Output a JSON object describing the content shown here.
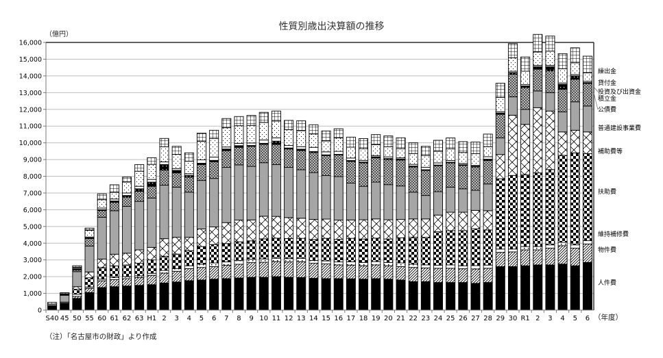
{
  "title": "性質別歳出決算額の推移",
  "y_unit": "（億円）",
  "x_unit": "（年度）",
  "note": "（注）「名古屋市の財政」より作成",
  "chart_data": {
    "type": "bar",
    "stacked": true,
    "title": "性質別歳出決算額の推移",
    "xlabel": "（年度）",
    "ylabel": "（億円）",
    "ylim": [
      0,
      16000
    ],
    "yticks": [
      "0",
      "1,000",
      "2,000",
      "3,000",
      "4,000",
      "5,000",
      "6,000",
      "7,000",
      "8,000",
      "9,000",
      "10,000",
      "11,000",
      "12,000",
      "13,000",
      "14,000",
      "15,000",
      "16,000"
    ],
    "grid": true,
    "legend_position": "right",
    "categories": [
      "S40",
      "45",
      "50",
      "55",
      "60",
      "61",
      "62",
      "63",
      "H1",
      "2",
      "3",
      "4",
      "5",
      "6",
      "7",
      "8",
      "9",
      "10",
      "11",
      "12",
      "13",
      "14",
      "15",
      "16",
      "17",
      "18",
      "19",
      "20",
      "21",
      "22",
      "23",
      "24",
      "25",
      "26",
      "27",
      "28",
      "29",
      "30",
      "R1",
      "2",
      "3",
      "4",
      "5",
      "6"
    ],
    "series": [
      {
        "name": "人件費",
        "pattern": "solid-black",
        "values": [
          260,
          420,
          700,
          1050,
          1350,
          1400,
          1440,
          1480,
          1520,
          1620,
          1680,
          1760,
          1800,
          1850,
          1880,
          1920,
          1960,
          1960,
          2000,
          1960,
          1950,
          1900,
          1880,
          1880,
          1870,
          1850,
          1880,
          1850,
          1800,
          1700,
          1700,
          1650,
          1650,
          1650,
          1600,
          1650,
          2600,
          2600,
          2650,
          2700,
          2700,
          2750,
          2650,
          2850
        ]
      },
      {
        "name": "物件費",
        "pattern": "diagonal-hatch",
        "values": [
          0,
          0,
          120,
          250,
          400,
          420,
          440,
          460,
          560,
          590,
          640,
          720,
          750,
          750,
          800,
          820,
          880,
          900,
          900,
          920,
          940,
          900,
          880,
          820,
          820,
          800,
          820,
          800,
          800,
          850,
          820,
          850,
          850,
          820,
          860,
          850,
          850,
          880,
          950,
          900,
          1000,
          1100,
          1050,
          1100
        ]
      },
      {
        "name": "維持補修費",
        "pattern": "white-dots",
        "values": [
          0,
          60,
          130,
          80,
          100,
          120,
          120,
          110,
          120,
          160,
          160,
          170,
          200,
          220,
          200,
          220,
          200,
          200,
          200,
          200,
          200,
          170,
          180,
          180,
          200,
          200,
          200,
          200,
          220,
          200,
          180,
          180,
          200,
          180,
          200,
          190,
          200,
          170,
          200,
          200,
          200,
          200,
          200,
          200
        ]
      },
      {
        "name": "扶助費",
        "pattern": "checker",
        "values": [
          0,
          0,
          300,
          550,
          700,
          700,
          700,
          750,
          800,
          850,
          870,
          900,
          1050,
          1100,
          1100,
          1120,
          1100,
          1200,
          1200,
          1200,
          1200,
          1250,
          1350,
          1350,
          1400,
          1400,
          1400,
          1400,
          1500,
          1600,
          1650,
          2000,
          2050,
          2100,
          2200,
          2100,
          4200,
          4400,
          4300,
          4400,
          4500,
          5200,
          5500,
          5200
        ]
      },
      {
        "name": "補助費等",
        "pattern": "wide-diagonal",
        "values": [
          0,
          0,
          150,
          350,
          500,
          700,
          700,
          800,
          750,
          1050,
          1000,
          800,
          1050,
          1050,
          1250,
          1300,
          1250,
          1350,
          1300,
          1250,
          1200,
          1200,
          1150,
          1150,
          1100,
          1150,
          1150,
          1150,
          1100,
          1100,
          1100,
          1000,
          1100,
          1100,
          1100,
          1150,
          1450,
          3600,
          3000,
          3900,
          3500,
          1400,
          1350,
          1300
        ]
      },
      {
        "name": "普通建設事業費",
        "pattern": "gray",
        "values": [
          100,
          400,
          900,
          1550,
          2500,
          2600,
          2800,
          2900,
          2950,
          3200,
          3000,
          2700,
          2900,
          2900,
          3300,
          3300,
          3200,
          3200,
          3100,
          3000,
          2900,
          2800,
          2600,
          2600,
          2200,
          2000,
          2200,
          2100,
          2000,
          1600,
          1400,
          1400,
          1500,
          1400,
          1200,
          1600,
          1000,
          1100,
          900,
          1000,
          1100,
          1200,
          1700,
          1550
        ]
      },
      {
        "name": "公債費",
        "pattern": "fine-checker",
        "values": [
          0,
          0,
          100,
          450,
          400,
          500,
          550,
          600,
          700,
          900,
          850,
          900,
          950,
          1000,
          1000,
          1050,
          1200,
          1100,
          1200,
          1100,
          1150,
          1200,
          1200,
          1300,
          1300,
          1400,
          1450,
          1500,
          1550,
          1500,
          1500,
          1550,
          1450,
          1400,
          1400,
          1400,
          1400,
          1350,
          1300,
          1300,
          1300,
          1350,
          1350,
          1350
        ]
      },
      {
        "name": "積立金",
        "pattern": "black-dots",
        "values": [
          0,
          30,
          60,
          40,
          50,
          80,
          100,
          150,
          250,
          330,
          150,
          100,
          80,
          80,
          100,
          100,
          50,
          60,
          200,
          60,
          80,
          60,
          40,
          30,
          50,
          50,
          60,
          60,
          60,
          60,
          40,
          40,
          40,
          40,
          40,
          80,
          80,
          100,
          100,
          150,
          250,
          300,
          200,
          50
        ]
      },
      {
        "name": "投資及び出資金",
        "pattern": "white",
        "values": [
          0,
          40,
          60,
          50,
          100,
          120,
          150,
          150,
          160,
          160,
          110,
          100,
          200,
          200,
          120,
          140,
          150,
          200,
          200,
          150,
          150,
          250,
          180,
          180,
          150,
          100,
          80,
          100,
          70,
          100,
          150,
          130,
          100,
          80,
          50,
          150,
          80,
          80,
          80,
          80,
          80,
          80,
          80,
          80
        ]
      },
      {
        "name": "貸付金",
        "pattern": "fine-dots",
        "values": [
          0,
          30,
          50,
          400,
          500,
          400,
          650,
          900,
          900,
          900,
          850,
          750,
          1100,
          1100,
          1150,
          1050,
          1050,
          1050,
          1000,
          950,
          950,
          800,
          650,
          800,
          650,
          700,
          650,
          600,
          550,
          650,
          700,
          700,
          700,
          650,
          700,
          600,
          850,
          800,
          800,
          800,
          850,
          850,
          700,
          500
        ]
      },
      {
        "name": "繰出金",
        "pattern": "grid",
        "values": [
          100,
          60,
          80,
          130,
          350,
          450,
          300,
          400,
          400,
          500,
          480,
          500,
          500,
          500,
          550,
          550,
          600,
          600,
          600,
          550,
          600,
          550,
          600,
          550,
          600,
          600,
          600,
          650,
          650,
          650,
          550,
          650,
          650,
          650,
          700,
          750,
          850,
          850,
          850,
          1050,
          900,
          900,
          900,
          1000
        ]
      }
    ]
  },
  "legend": {
    "items": [
      {
        "label": "繰出金",
        "y": 107
      },
      {
        "label": "貸付金",
        "y": 124
      },
      {
        "label": "投資及び出資金",
        "y": 137
      },
      {
        "label": "積立金",
        "y": 147
      },
      {
        "label": "公債費",
        "y": 163
      },
      {
        "label": "普通建設事業費",
        "y": 190
      },
      {
        "label": "補助費等",
        "y": 224
      },
      {
        "label": "扶助費",
        "y": 283
      },
      {
        "label": "維持補修費",
        "y": 345
      },
      {
        "label": "物件費",
        "y": 368
      },
      {
        "label": "人件費",
        "y": 416
      }
    ]
  }
}
